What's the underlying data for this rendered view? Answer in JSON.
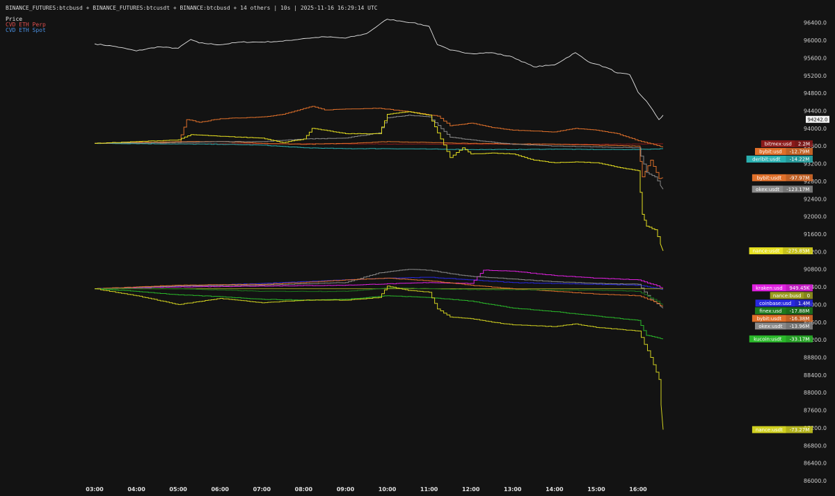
{
  "header": {
    "title": "BINANCE_FUTURES:btcbusd + BINANCE_FUTURES:btcusdt + BINANCE:btcbusd + 14 others | 10s | 2025-11-16 16:29:14 UTC"
  },
  "legend": [
    {
      "label": "Price",
      "color": "#e6e6e6"
    },
    {
      "label": "CVD ETH Perp",
      "color": "#e05050"
    },
    {
      "label": "CVD ETH Spot",
      "color": "#4a90e2"
    }
  ],
  "chart_data": {
    "type": "line",
    "x_ticks": [
      "03:00",
      "04:00",
      "05:00",
      "06:00",
      "07:00",
      "08:00",
      "09:00",
      "10:00",
      "11:00",
      "12:00",
      "13:00",
      "14:00",
      "15:00",
      "16:00"
    ],
    "y_ticks": [
      "96400.0",
      "96000.0",
      "95600.0",
      "95200.0",
      "94800.0",
      "94400.0",
      "94000.0",
      "93600.0",
      "93200.0",
      "92800.0",
      "92400.0",
      "92000.0",
      "91600.0",
      "91200.0",
      "90800.0",
      "90400.0",
      "90000.0",
      "89600.0",
      "89200.0",
      "88800.0",
      "88400.0",
      "88000.0",
      "87600.0",
      "87200.0",
      "86800.0",
      "86400.0",
      "86000.0"
    ],
    "ylim": [
      86000,
      96600
    ],
    "price_tag": "94242.0",
    "series": [
      {
        "name": "Price",
        "color": "#e6e6e6",
        "panel": "price",
        "points": [
          [
            3.0,
            95920
          ],
          [
            3.5,
            95860
          ],
          [
            4.0,
            95760
          ],
          [
            4.5,
            95850
          ],
          [
            5.0,
            95820
          ],
          [
            5.3,
            96020
          ],
          [
            5.5,
            95940
          ],
          [
            6.0,
            95900
          ],
          [
            6.5,
            95960
          ],
          [
            7.0,
            95960
          ],
          [
            7.5,
            95980
          ],
          [
            8.0,
            96040
          ],
          [
            8.5,
            96080
          ],
          [
            9.0,
            96050
          ],
          [
            9.5,
            96150
          ],
          [
            9.8,
            96350
          ],
          [
            10.0,
            96480
          ],
          [
            10.3,
            96440
          ],
          [
            10.6,
            96400
          ],
          [
            11.0,
            96320
          ],
          [
            11.2,
            95900
          ],
          [
            11.5,
            95780
          ],
          [
            12.0,
            95700
          ],
          [
            12.5,
            95720
          ],
          [
            13.0,
            95620
          ],
          [
            13.5,
            95400
          ],
          [
            14.0,
            95440
          ],
          [
            14.5,
            95720
          ],
          [
            14.8,
            95520
          ],
          [
            15.0,
            95460
          ],
          [
            15.3,
            95360
          ],
          [
            15.5,
            95260
          ],
          [
            15.8,
            95220
          ],
          [
            16.0,
            94820
          ],
          [
            16.2,
            94620
          ],
          [
            16.5,
            94200
          ],
          [
            16.6,
            94300
          ]
        ]
      },
      {
        "name": "bitmex:usd",
        "value_label": "2.2M",
        "color": "#8b1a1a",
        "panel": "perp",
        "points": [
          [
            3.0,
            93660
          ],
          [
            6.0,
            93650
          ],
          [
            9.0,
            93650
          ],
          [
            12.0,
            93640
          ],
          [
            15.0,
            93640
          ],
          [
            16.6,
            93650
          ]
        ]
      },
      {
        "name": "bybit:usd",
        "value_label": "-12.79M",
        "color": "#e0702a",
        "panel": "perp",
        "points": [
          [
            3.0,
            93660
          ],
          [
            5.0,
            93680
          ],
          [
            5.2,
            94200
          ],
          [
            5.5,
            94140
          ],
          [
            6.0,
            94220
          ],
          [
            7.0,
            94260
          ],
          [
            7.5,
            94320
          ],
          [
            8.2,
            94500
          ],
          [
            8.5,
            94420
          ],
          [
            9.0,
            94440
          ],
          [
            9.8,
            94460
          ],
          [
            10.5,
            94380
          ],
          [
            11.2,
            94280
          ],
          [
            11.5,
            94060
          ],
          [
            12.0,
            94120
          ],
          [
            12.5,
            94020
          ],
          [
            13.0,
            93960
          ],
          [
            13.5,
            93940
          ],
          [
            14.0,
            93920
          ],
          [
            14.5,
            94000
          ],
          [
            15.0,
            93960
          ],
          [
            15.5,
            93880
          ],
          [
            16.0,
            93720
          ],
          [
            16.6,
            93580
          ]
        ]
      },
      {
        "name": "deribit:usdt",
        "value_label": "-14.22M",
        "color": "#2ab0b0",
        "panel": "perp",
        "points": [
          [
            3.0,
            93660
          ],
          [
            6.0,
            93640
          ],
          [
            7.0,
            93620
          ],
          [
            8.0,
            93560
          ],
          [
            9.0,
            93540
          ],
          [
            10.0,
            93540
          ],
          [
            11.0,
            93530
          ],
          [
            12.0,
            93520
          ],
          [
            13.0,
            93520
          ],
          [
            14.0,
            93530
          ],
          [
            15.0,
            93520
          ],
          [
            16.0,
            93520
          ],
          [
            16.6,
            93540
          ]
        ]
      },
      {
        "name": "bybit:usdt",
        "value_label": "-97.97M",
        "color": "#e0702a",
        "panel": "perp",
        "points": [
          [
            3.0,
            93660
          ],
          [
            5.0,
            93700
          ],
          [
            6.0,
            93700
          ],
          [
            7.0,
            93660
          ],
          [
            8.0,
            93640
          ],
          [
            9.0,
            93660
          ],
          [
            10.0,
            93700
          ],
          [
            11.0,
            93680
          ],
          [
            12.0,
            93660
          ],
          [
            13.0,
            93650
          ],
          [
            14.0,
            93640
          ],
          [
            15.0,
            93620
          ],
          [
            16.0,
            93600
          ],
          [
            16.1,
            92900
          ],
          [
            16.3,
            93280
          ],
          [
            16.5,
            92860
          ],
          [
            16.6,
            92880
          ]
        ]
      },
      {
        "name": "okex:usdt",
        "value_label": "-123.17M",
        "color": "#8a8a8a",
        "panel": "perp",
        "points": [
          [
            3.0,
            93660
          ],
          [
            5.0,
            93680
          ],
          [
            6.0,
            93700
          ],
          [
            7.0,
            93700
          ],
          [
            8.0,
            93760
          ],
          [
            9.0,
            93780
          ],
          [
            9.8,
            93900
          ],
          [
            10.0,
            94240
          ],
          [
            10.5,
            94300
          ],
          [
            11.0,
            94260
          ],
          [
            11.5,
            93800
          ],
          [
            12.0,
            93740
          ],
          [
            13.0,
            93640
          ],
          [
            14.0,
            93600
          ],
          [
            15.0,
            93580
          ],
          [
            16.0,
            93560
          ],
          [
            16.2,
            93000
          ],
          [
            16.4,
            92900
          ],
          [
            16.6,
            92620
          ]
        ]
      },
      {
        "name": "nance:usdt",
        "value_label": "-275.85M",
        "color": "#e6e020",
        "panel": "perp",
        "points": [
          [
            3.0,
            93660
          ],
          [
            4.0,
            93700
          ],
          [
            5.0,
            93740
          ],
          [
            5.3,
            93860
          ],
          [
            6.0,
            93820
          ],
          [
            7.0,
            93780
          ],
          [
            7.5,
            93680
          ],
          [
            8.0,
            93760
          ],
          [
            8.2,
            94000
          ],
          [
            9.0,
            93880
          ],
          [
            9.8,
            93880
          ],
          [
            10.0,
            94320
          ],
          [
            10.5,
            94380
          ],
          [
            11.0,
            94300
          ],
          [
            11.2,
            93900
          ],
          [
            11.5,
            93340
          ],
          [
            11.8,
            93560
          ],
          [
            12.0,
            93420
          ],
          [
            12.5,
            93440
          ],
          [
            13.0,
            93420
          ],
          [
            13.5,
            93280
          ],
          [
            14.0,
            93220
          ],
          [
            14.5,
            93240
          ],
          [
            15.0,
            93220
          ],
          [
            15.5,
            93120
          ],
          [
            16.0,
            93040
          ],
          [
            16.1,
            92050
          ],
          [
            16.2,
            91780
          ],
          [
            16.4,
            91700
          ],
          [
            16.6,
            91220
          ]
        ]
      },
      {
        "name": "coinbase:usd",
        "value_label": "1.4M",
        "color": "#2828e0",
        "panel": "spot",
        "points": [
          [
            3.0,
            90360
          ],
          [
            5.0,
            90420
          ],
          [
            7.0,
            90480
          ],
          [
            9.0,
            90560
          ],
          [
            10.0,
            90600
          ],
          [
            11.0,
            90620
          ],
          [
            12.0,
            90560
          ],
          [
            13.0,
            90500
          ],
          [
            14.0,
            90480
          ],
          [
            15.0,
            90460
          ],
          [
            16.0,
            90440
          ],
          [
            16.6,
            90340
          ]
        ]
      },
      {
        "name": "nance:busd",
        "value_label": "0",
        "color": "#9a9a20",
        "panel": "spot",
        "points": [
          [
            3.0,
            90360
          ],
          [
            16.6,
            90360
          ]
        ]
      },
      {
        "name": "kraken:usd",
        "value_label": "949.45K",
        "color": "#e020e0",
        "panel": "spot",
        "points": [
          [
            3.0,
            90360
          ],
          [
            5.0,
            90400
          ],
          [
            7.0,
            90420
          ],
          [
            9.0,
            90440
          ],
          [
            11.0,
            90500
          ],
          [
            12.0,
            90480
          ],
          [
            12.3,
            90780
          ],
          [
            13.0,
            90760
          ],
          [
            14.0,
            90660
          ],
          [
            15.0,
            90600
          ],
          [
            16.0,
            90560
          ],
          [
            16.6,
            90380
          ]
        ]
      },
      {
        "name": "okex:usdt",
        "value_label": "-13.96M",
        "color": "#8a8a8a",
        "panel": "spot",
        "points": [
          [
            3.0,
            90360
          ],
          [
            5.0,
            90420
          ],
          [
            7.0,
            90440
          ],
          [
            9.0,
            90500
          ],
          [
            9.8,
            90720
          ],
          [
            10.5,
            90800
          ],
          [
            11.0,
            90780
          ],
          [
            11.5,
            90700
          ],
          [
            12.0,
            90640
          ],
          [
            13.0,
            90580
          ],
          [
            14.0,
            90520
          ],
          [
            15.0,
            90480
          ],
          [
            16.0,
            90460
          ],
          [
            16.3,
            90120
          ],
          [
            16.6,
            89920
          ]
        ]
      },
      {
        "name": "bybit:usdt",
        "value_label": "-16.38M",
        "color": "#e0702a",
        "panel": "spot",
        "points": [
          [
            3.0,
            90360
          ],
          [
            5.0,
            90440
          ],
          [
            7.0,
            90460
          ],
          [
            8.0,
            90500
          ],
          [
            9.0,
            90560
          ],
          [
            10.0,
            90600
          ],
          [
            11.0,
            90540
          ],
          [
            12.0,
            90440
          ],
          [
            13.0,
            90360
          ],
          [
            14.0,
            90300
          ],
          [
            15.0,
            90240
          ],
          [
            16.0,
            90200
          ],
          [
            16.3,
            90100
          ],
          [
            16.6,
            89960
          ]
        ]
      },
      {
        "name": "finex:usd",
        "value_label": "-17.88M",
        "color": "#1e7a1e",
        "panel": "spot",
        "points": [
          [
            3.0,
            90360
          ],
          [
            5.0,
            90360
          ],
          [
            7.0,
            90300
          ],
          [
            9.0,
            90300
          ],
          [
            10.0,
            90380
          ],
          [
            11.0,
            90360
          ],
          [
            12.0,
            90340
          ],
          [
            13.0,
            90340
          ],
          [
            14.0,
            90330
          ],
          [
            15.0,
            90330
          ],
          [
            16.0,
            90300
          ],
          [
            16.3,
            90150
          ],
          [
            16.6,
            90000
          ]
        ]
      },
      {
        "name": "kucoin:usdt",
        "value_label": "-33.17M",
        "color": "#2ab82a",
        "panel": "spot",
        "points": [
          [
            3.0,
            90360
          ],
          [
            4.0,
            90300
          ],
          [
            5.0,
            90220
          ],
          [
            6.0,
            90180
          ],
          [
            7.0,
            90120
          ],
          [
            8.0,
            90100
          ],
          [
            9.0,
            90120
          ],
          [
            10.0,
            90200
          ],
          [
            11.0,
            90160
          ],
          [
            12.0,
            90080
          ],
          [
            13.0,
            89920
          ],
          [
            14.0,
            89840
          ],
          [
            15.0,
            89740
          ],
          [
            16.0,
            89640
          ],
          [
            16.2,
            89300
          ],
          [
            16.6,
            89220
          ]
        ]
      },
      {
        "name": "nance:usdt",
        "value_label": "-73.27M",
        "color": "#d0d020",
        "panel": "spot",
        "points": [
          [
            3.0,
            90360
          ],
          [
            4.0,
            90200
          ],
          [
            5.0,
            90000
          ],
          [
            6.0,
            90140
          ],
          [
            7.0,
            90040
          ],
          [
            8.0,
            90100
          ],
          [
            9.0,
            90100
          ],
          [
            9.8,
            90160
          ],
          [
            10.0,
            90420
          ],
          [
            10.5,
            90320
          ],
          [
            11.0,
            90280
          ],
          [
            11.2,
            89900
          ],
          [
            11.5,
            89720
          ],
          [
            12.0,
            89680
          ],
          [
            12.5,
            89600
          ],
          [
            13.0,
            89540
          ],
          [
            13.5,
            89520
          ],
          [
            14.0,
            89500
          ],
          [
            14.5,
            89560
          ],
          [
            15.0,
            89480
          ],
          [
            15.5,
            89440
          ],
          [
            16.0,
            89400
          ],
          [
            16.3,
            88800
          ],
          [
            16.5,
            88300
          ],
          [
            16.6,
            87160
          ]
        ]
      }
    ]
  }
}
